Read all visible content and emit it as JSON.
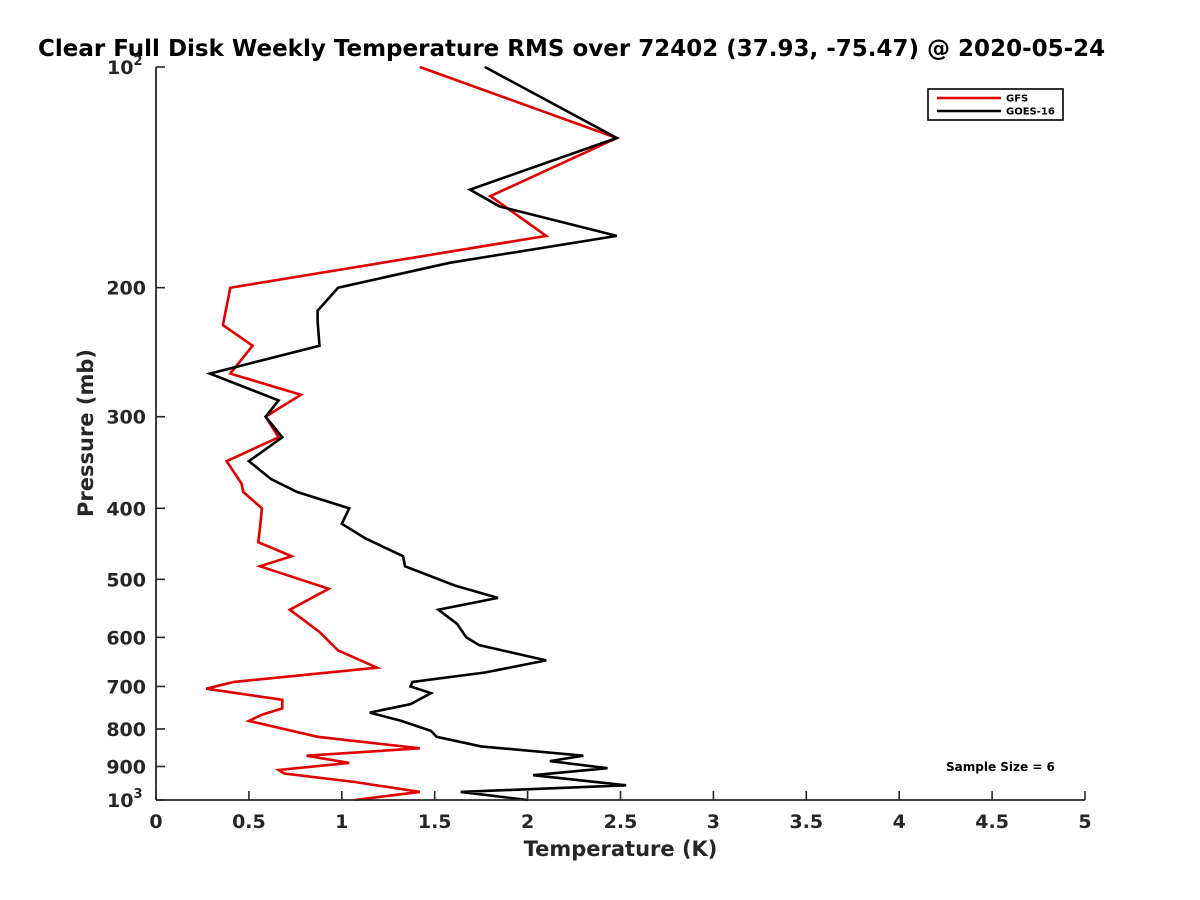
{
  "chart_data": {
    "type": "line",
    "title": "Clear Full Disk Weekly Temperature RMS over 72402 (37.93, -75.47) @ 2020-05-24",
    "xlabel": "Temperature (K)",
    "ylabel": "Pressure (mb)",
    "xlim": [
      0,
      5
    ],
    "ylim": [
      100,
      1000
    ],
    "y_scale": "log",
    "y_reversed": true,
    "grid": false,
    "legend_position": "top-right",
    "x_ticks": [
      0,
      0.5,
      1,
      1.5,
      2,
      2.5,
      3,
      3.5,
      4,
      4.5,
      5
    ],
    "x_tick_labels": [
      "0",
      "0.5",
      "1",
      "1.5",
      "2",
      "2.5",
      "3",
      "3.5",
      "4",
      "4.5",
      "5"
    ],
    "y_ticks": [
      {
        "value": 100,
        "label": "10",
        "sup": "2"
      },
      {
        "value": 200,
        "label": "200"
      },
      {
        "value": 300,
        "label": "300"
      },
      {
        "value": 400,
        "label": "400"
      },
      {
        "value": 500,
        "label": "500"
      },
      {
        "value": 600,
        "label": "600"
      },
      {
        "value": 700,
        "label": "700"
      },
      {
        "value": 800,
        "label": "800"
      },
      {
        "value": 900,
        "label": "900"
      },
      {
        "value": 1000,
        "label": "10",
        "sup": "3"
      }
    ],
    "series": [
      {
        "name": "GFS",
        "color": "#e00000",
        "points": [
          [
            1.42,
            100
          ],
          [
            2.48,
            125
          ],
          [
            1.8,
            150
          ],
          [
            2.1,
            170
          ],
          [
            0.4,
            200
          ],
          [
            0.36,
            225
          ],
          [
            0.52,
            240
          ],
          [
            0.4,
            262
          ],
          [
            0.78,
            280
          ],
          [
            0.59,
            300
          ],
          [
            0.66,
            320
          ],
          [
            0.38,
            345
          ],
          [
            0.46,
            370
          ],
          [
            0.47,
            380
          ],
          [
            0.57,
            400
          ],
          [
            0.56,
            425
          ],
          [
            0.55,
            445
          ],
          [
            0.73,
            465
          ],
          [
            0.56,
            480
          ],
          [
            0.93,
            515
          ],
          [
            0.72,
            550
          ],
          [
            0.88,
            590
          ],
          [
            0.98,
            625
          ],
          [
            1.19,
            660
          ],
          [
            0.42,
            690
          ],
          [
            0.27,
            705
          ],
          [
            0.68,
            730
          ],
          [
            0.68,
            750
          ],
          [
            0.57,
            765
          ],
          [
            0.5,
            780
          ],
          [
            0.87,
            820
          ],
          [
            1.42,
            850
          ],
          [
            0.81,
            870
          ],
          [
            1.04,
            890
          ],
          [
            0.66,
            910
          ],
          [
            0.69,
            920
          ],
          [
            1.07,
            945
          ],
          [
            1.42,
            975
          ],
          [
            1.07,
            1000
          ]
        ]
      },
      {
        "name": "GOES-16",
        "color": "#000000",
        "points": [
          [
            1.77,
            100
          ],
          [
            2.48,
            125
          ],
          [
            1.69,
            147
          ],
          [
            1.85,
            155
          ],
          [
            2.48,
            170
          ],
          [
            1.58,
            185
          ],
          [
            0.98,
            200
          ],
          [
            0.87,
            215
          ],
          [
            0.87,
            222
          ],
          [
            0.88,
            240
          ],
          [
            0.29,
            262
          ],
          [
            0.66,
            285
          ],
          [
            0.59,
            300
          ],
          [
            0.68,
            320
          ],
          [
            0.5,
            345
          ],
          [
            0.62,
            365
          ],
          [
            0.76,
            380
          ],
          [
            1.04,
            400
          ],
          [
            1.0,
            420
          ],
          [
            1.13,
            440
          ],
          [
            1.33,
            465
          ],
          [
            1.34,
            480
          ],
          [
            1.61,
            510
          ],
          [
            1.84,
            530
          ],
          [
            1.52,
            550
          ],
          [
            1.62,
            575
          ],
          [
            1.67,
            600
          ],
          [
            1.74,
            615
          ],
          [
            2.1,
            645
          ],
          [
            1.77,
            670
          ],
          [
            1.38,
            690
          ],
          [
            1.37,
            700
          ],
          [
            1.48,
            715
          ],
          [
            1.37,
            740
          ],
          [
            1.15,
            760
          ],
          [
            1.32,
            780
          ],
          [
            1.48,
            805
          ],
          [
            1.51,
            820
          ],
          [
            1.75,
            845
          ],
          [
            2.3,
            870
          ],
          [
            2.12,
            885
          ],
          [
            2.43,
            905
          ],
          [
            2.03,
            925
          ],
          [
            2.53,
            955
          ],
          [
            1.64,
            975
          ],
          [
            2.0,
            1000
          ]
        ]
      }
    ],
    "annotation": "Sample Size = 6"
  }
}
